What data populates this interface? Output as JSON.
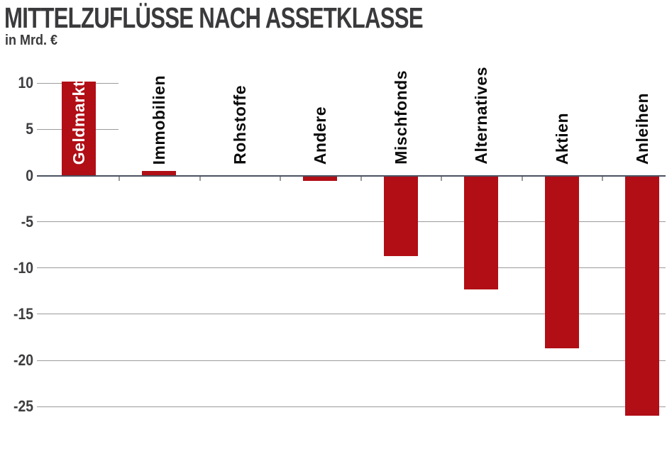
{
  "header": {
    "title": "MITTELZUFLÜSSE NACH ASSETKLASSE",
    "subtitle": "in Mrd. €"
  },
  "chart_data": {
    "type": "bar",
    "title": "MITTELZUFLÜSSE NACH ASSETKLASSE",
    "subtitle": "in Mrd. €",
    "ylabel": "in Mrd. €",
    "xlabel": "",
    "categories": [
      "Geldmarkt",
      "Immobilien",
      "Rohstoffe",
      "Andere",
      "Mischfonds",
      "Alternatives",
      "Aktien",
      "Anleihen"
    ],
    "values": [
      10.2,
      0.5,
      -0.1,
      -0.6,
      -8.7,
      -12.3,
      -18.7,
      -26.0
    ],
    "yticks": [
      10,
      5,
      0,
      -5,
      -10,
      -15,
      -20,
      -25
    ],
    "ylim": [
      -27,
      11
    ],
    "grid": "horizontal",
    "legend": "none",
    "label_inside_index": 0,
    "bar_color": "#b10e16",
    "gridline_color": "#9b9b9b",
    "zero_line_color": "#4a5160",
    "label_color": "#0b0b0b",
    "inside_label_color": "#ffffff",
    "tick_label_color": "#3e3e40"
  }
}
